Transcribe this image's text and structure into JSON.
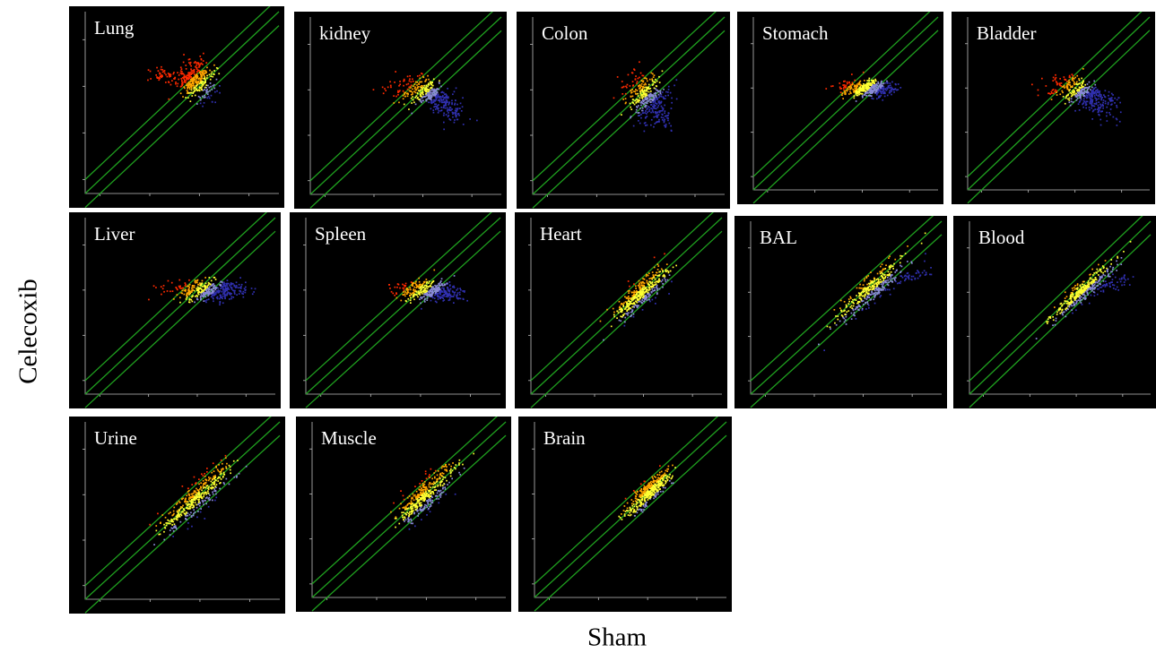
{
  "figure": {
    "y_title": "Celecoxib",
    "x_title": "Sham"
  },
  "colors": {
    "panel_background": "#000000",
    "axis": "#bfbfbf",
    "diagonal": "#1fa01f",
    "high": "#ff2a00",
    "mid_high": "#ffa500",
    "mid": "#ffff33",
    "low": "#8a8ad8",
    "very_low": "#3030b0"
  },
  "chart_data": [
    {
      "type": "scatter",
      "label": "Lung",
      "xlim": [
        0.005,
        40
      ],
      "ylim": [
        0.005,
        40
      ],
      "scale": "log",
      "diagonals": [
        0.5,
        1,
        2
      ],
      "cluster": {
        "cx": 0.9,
        "cy": 1.2,
        "spread_x": 0.18,
        "spread_y": 0.22,
        "skew": "up",
        "tail_to": [
          0.1,
          2.0
        ]
      }
    },
    {
      "type": "scatter",
      "label": "kidney",
      "xlim": [
        0.005,
        40
      ],
      "ylim": [
        0.005,
        40
      ],
      "scale": "log",
      "diagonals": [
        0.5,
        1,
        2
      ],
      "cluster": {
        "cx": 1.2,
        "cy": 0.95,
        "spread_x": 0.35,
        "spread_y": 0.18,
        "skew": "down-right",
        "tail_to": [
          6.0,
          0.25
        ]
      }
    },
    {
      "type": "scatter",
      "label": "Colon",
      "xlim": [
        0.005,
        40
      ],
      "ylim": [
        0.005,
        40
      ],
      "scale": "log",
      "diagonals": [
        0.5,
        1,
        2
      ],
      "cluster": {
        "cx": 1.0,
        "cy": 0.85,
        "spread_x": 0.22,
        "spread_y": 0.25,
        "skew": "down",
        "tail_to": [
          3.0,
          0.15
        ]
      }
    },
    {
      "type": "scatter",
      "label": "Stomach",
      "xlim": [
        0.005,
        40
      ],
      "ylim": [
        0.005,
        40
      ],
      "scale": "log",
      "diagonals": [
        0.5,
        1,
        2
      ],
      "cluster": {
        "cx": 1.1,
        "cy": 1.0,
        "spread_x": 0.25,
        "spread_y": 0.1,
        "skew": "flat",
        "tail_to": [
          5.0,
          1.0
        ]
      }
    },
    {
      "type": "scatter",
      "label": "Bladder",
      "xlim": [
        0.005,
        40
      ],
      "ylim": [
        0.005,
        40
      ],
      "scale": "log",
      "diagonals": [
        0.5,
        1,
        2
      ],
      "cluster": {
        "cx": 1.2,
        "cy": 0.95,
        "spread_x": 0.35,
        "spread_y": 0.18,
        "skew": "down-right",
        "tail_to": [
          8.0,
          0.5
        ]
      }
    },
    {
      "type": "scatter",
      "label": "Liver",
      "xlim": [
        0.005,
        40
      ],
      "ylim": [
        0.005,
        40
      ],
      "scale": "log",
      "diagonals": [
        0.5,
        1,
        2
      ],
      "cluster": {
        "cx": 1.4,
        "cy": 1.0,
        "spread_x": 0.35,
        "spread_y": 0.12,
        "skew": "flat",
        "tail_to": [
          10.0,
          1.2
        ]
      }
    },
    {
      "type": "scatter",
      "label": "Spleen",
      "xlim": [
        0.005,
        40
      ],
      "ylim": [
        0.005,
        40
      ],
      "scale": "log",
      "diagonals": [
        0.5,
        1,
        2
      ],
      "cluster": {
        "cx": 1.3,
        "cy": 1.0,
        "spread_x": 0.3,
        "spread_y": 0.12,
        "skew": "flat",
        "tail_to": [
          6.0,
          0.8
        ]
      }
    },
    {
      "type": "scatter",
      "label": "Heart",
      "xlim": [
        0.005,
        40
      ],
      "ylim": [
        0.005,
        40
      ],
      "scale": "log",
      "diagonals": [
        0.5,
        1,
        2
      ],
      "cluster": {
        "cx": 1.0,
        "cy": 1.0,
        "spread_x": 0.28,
        "spread_y": 0.28,
        "skew": "diagonal",
        "tail_to": [
          0.3,
          0.3
        ]
      }
    },
    {
      "type": "scatter",
      "label": "BAL",
      "xlim": [
        0.005,
        40
      ],
      "ylim": [
        0.005,
        40
      ],
      "scale": "log",
      "diagonals": [
        0.5,
        1,
        2
      ],
      "cluster": {
        "cx": 1.5,
        "cy": 1.3,
        "spread_x": 0.4,
        "spread_y": 0.28,
        "skew": "diagonal",
        "tail_to": [
          20.0,
          3.0
        ]
      }
    },
    {
      "type": "scatter",
      "label": "Blood",
      "xlim": [
        0.005,
        40
      ],
      "ylim": [
        0.005,
        40
      ],
      "scale": "log",
      "diagonals": [
        0.5,
        1,
        2
      ],
      "cluster": {
        "cx": 1.3,
        "cy": 1.1,
        "spread_x": 0.35,
        "spread_y": 0.2,
        "skew": "diagonal",
        "tail_to": [
          12.0,
          2.0
        ]
      }
    },
    {
      "type": "scatter",
      "label": "Urine",
      "xlim": [
        0.005,
        40
      ],
      "ylim": [
        0.005,
        40
      ],
      "scale": "log",
      "diagonals": [
        0.5,
        1,
        2
      ],
      "cluster": {
        "cx": 0.9,
        "cy": 1.0,
        "spread_x": 0.35,
        "spread_y": 0.35,
        "skew": "diagonal",
        "tail_to": [
          0.2,
          0.2
        ]
      }
    },
    {
      "type": "scatter",
      "label": "Muscle",
      "xlim": [
        0.005,
        40
      ],
      "ylim": [
        0.005,
        40
      ],
      "scale": "log",
      "diagonals": [
        0.5,
        1,
        2
      ],
      "cluster": {
        "cx": 1.0,
        "cy": 1.1,
        "spread_x": 0.28,
        "spread_y": 0.35,
        "skew": "diagonal",
        "tail_to": [
          0.3,
          0.3
        ]
      }
    },
    {
      "type": "scatter",
      "label": "Brain",
      "xlim": [
        0.005,
        40
      ],
      "ylim": [
        0.005,
        40
      ],
      "scale": "log",
      "diagonals": [
        0.5,
        1,
        2
      ],
      "cluster": {
        "cx": 1.0,
        "cy": 1.1,
        "spread_x": 0.22,
        "spread_y": 0.22,
        "skew": "diagonal",
        "tail_to": [
          2.5,
          2.5
        ]
      }
    }
  ]
}
